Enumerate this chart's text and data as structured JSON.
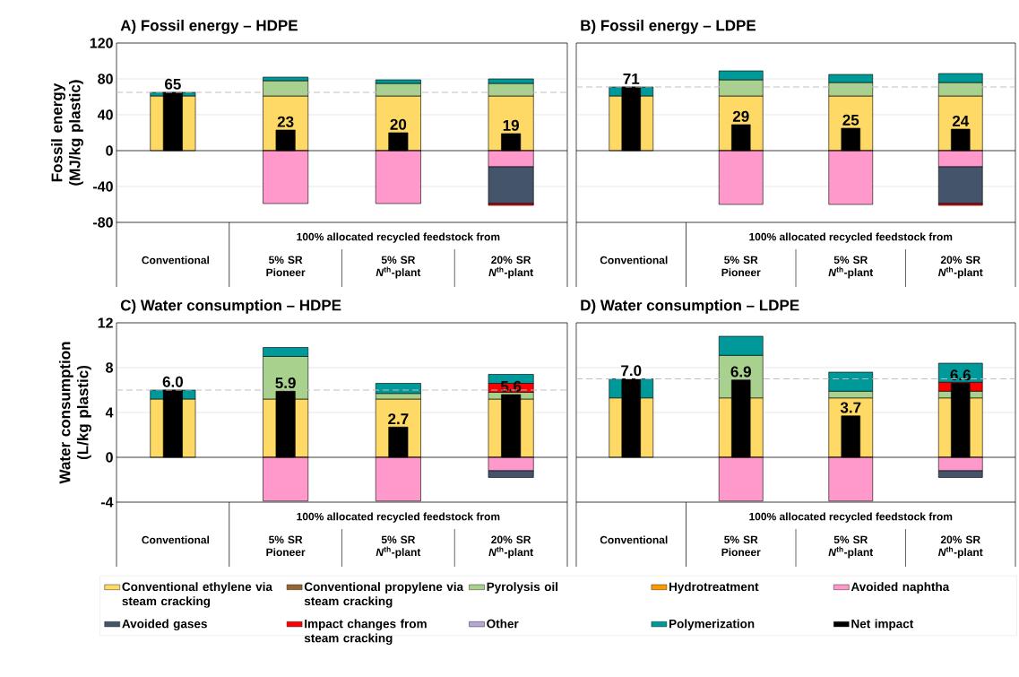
{
  "chart_data": [
    {
      "type": "bar",
      "title": "A) Fossil energy – HDPE",
      "ylabel": "Fossil energy (MJ/kg plastic)",
      "categories": [
        "Conventional",
        "5% SR Pioneer",
        "5% SR *N*$^{th}$-plant",
        "20% SR *N*$^{th}$-plant"
      ],
      "ylim": [
        -80,
        120
      ],
      "yticks": [
        -80,
        -40,
        0,
        40,
        80,
        120
      ],
      "grid": "y",
      "annotations": [
        "100% allocated recycled feedstock from"
      ],
      "ref_lines": [
        {
          "axis": "y",
          "value": 65,
          "color": "#bfbfbf",
          "line_style": "dashed"
        }
      ],
      "series": [
        {
          "color": "#ffd966",
          "base": [
            0,
            0,
            0,
            0
          ],
          "values": [
            61,
            61,
            61,
            61
          ]
        },
        {
          "color": "#996633",
          "values": [
            null,
            null,
            null,
            null
          ]
        },
        {
          "color": "#a9d18e",
          "base": [
            null,
            61,
            61,
            61
          ],
          "values": [
            null,
            17,
            14,
            14
          ]
        },
        {
          "color": "#ff9900",
          "values": [
            null,
            null,
            null,
            null
          ]
        },
        {
          "color": "#ff99cc",
          "base": [
            null,
            0,
            0,
            0
          ],
          "values": [
            null,
            -59,
            -59,
            -18
          ]
        },
        {
          "color": "#44546a",
          "base": [
            null,
            null,
            null,
            -18
          ],
          "values": [
            null,
            null,
            null,
            -41
          ]
        },
        {
          "color": "#ff0000",
          "base": [
            null,
            null,
            null,
            -59
          ],
          "values": [
            null,
            null,
            null,
            -2
          ]
        },
        {
          "color": "#b4a7d6",
          "values": [
            null,
            null,
            null,
            null
          ]
        },
        {
          "color": "#009999",
          "base": [
            61,
            78,
            75,
            75
          ],
          "values": [
            4,
            4,
            4,
            5
          ]
        },
        {
          "color": "#000000",
          "base": [
            0,
            0,
            0,
            0
          ],
          "values": [
            65,
            23,
            20,
            19
          ],
          "value_labels": [
            "65",
            "23",
            "20",
            "19"
          ]
        }
      ]
    },
    {
      "type": "bar",
      "title": "B) Fossil energy – LDPE",
      "tick_labels": "x",
      "categories": [
        "Conventional",
        "5% SR Pioneer",
        "5% SR *N*$^{th}$-plant",
        "20% SR *N*$^{th}$-plant"
      ],
      "ylim": [
        -80,
        120
      ],
      "yticks": [
        -80,
        -40,
        0,
        40,
        80,
        120
      ],
      "grid": "y",
      "annotations": [
        "100% allocated recycled feedstock from"
      ],
      "ref_lines": [
        {
          "axis": "y",
          "value": 71,
          "color": "#bfbfbf",
          "line_style": "dashed"
        }
      ],
      "series": [
        {
          "color": "#ffd966",
          "base": [
            0,
            0,
            0,
            0
          ],
          "values": [
            61,
            61,
            61,
            61
          ]
        },
        {
          "color": "#996633",
          "values": [
            null,
            null,
            null,
            null
          ]
        },
        {
          "color": "#a9d18e",
          "base": [
            null,
            61,
            61,
            61
          ],
          "values": [
            null,
            18,
            15,
            15
          ]
        },
        {
          "color": "#ff9900",
          "values": [
            null,
            null,
            null,
            null
          ]
        },
        {
          "color": "#ff99cc",
          "base": [
            null,
            0,
            0,
            0
          ],
          "values": [
            null,
            -60,
            -60,
            -18
          ]
        },
        {
          "color": "#44546a",
          "base": [
            null,
            null,
            null,
            -18
          ],
          "values": [
            null,
            null,
            null,
            -41
          ]
        },
        {
          "color": "#ff0000",
          "base": [
            null,
            null,
            null,
            -59
          ],
          "values": [
            null,
            null,
            null,
            -2
          ]
        },
        {
          "color": "#b4a7d6",
          "values": [
            null,
            null,
            null,
            null
          ]
        },
        {
          "color": "#009999",
          "base": [
            61,
            79,
            76,
            76
          ],
          "values": [
            10,
            10,
            9,
            10
          ]
        },
        {
          "color": "#000000",
          "base": [
            0,
            0,
            0,
            0
          ],
          "values": [
            71,
            29,
            25,
            24
          ],
          "value_labels": [
            "71",
            "29",
            "25",
            "24"
          ]
        }
      ]
    },
    {
      "type": "bar",
      "title": "C) Water consumption – HDPE",
      "ylabel": "Water consumption (L/kg plastic)",
      "categories": [
        "Conventional",
        "5% SR Pioneer",
        "5% SR *N*$^{th}$-plant",
        "20% SR *N*$^{th}$-plant"
      ],
      "ylim": [
        -4,
        12
      ],
      "yticks": [
        -4,
        0,
        4,
        8,
        12
      ],
      "grid": "y",
      "annotations": [
        "100% allocated recycled feedstock from"
      ],
      "ref_lines": [
        {
          "axis": "y",
          "value": 6.0,
          "color": "#bfbfbf",
          "line_style": "dashed"
        }
      ],
      "series": [
        {
          "color": "#ffd966",
          "base": [
            0,
            0,
            0,
            0
          ],
          "values": [
            5.2,
            5.2,
            5.2,
            5.2
          ]
        },
        {
          "color": "#996633",
          "values": [
            null,
            null,
            null,
            null
          ]
        },
        {
          "color": "#a9d18e",
          "base": [
            null,
            5.2,
            5.2,
            5.2
          ],
          "values": [
            null,
            3.8,
            0.5,
            0.6
          ]
        },
        {
          "color": "#ff9900",
          "values": [
            null,
            null,
            null,
            null
          ]
        },
        {
          "color": "#ff99cc",
          "base": [
            null,
            0,
            0,
            0
          ],
          "values": [
            null,
            -3.9,
            -3.9,
            -1.2
          ]
        },
        {
          "color": "#44546a",
          "base": [
            null,
            null,
            null,
            -1.2
          ],
          "values": [
            null,
            null,
            null,
            -0.6
          ]
        },
        {
          "color": "#ff0000",
          "base": [
            null,
            null,
            null,
            5.8
          ],
          "values": [
            null,
            null,
            null,
            0.8
          ]
        },
        {
          "color": "#b4a7d6",
          "values": [
            null,
            null,
            null,
            null
          ]
        },
        {
          "color": "#009999",
          "base": [
            5.2,
            9.0,
            5.7,
            6.6
          ],
          "values": [
            0.8,
            0.8,
            0.9,
            0.8
          ]
        },
        {
          "color": "#000000",
          "base": [
            0,
            0,
            0,
            0
          ],
          "values": [
            6.0,
            5.9,
            2.7,
            5.6
          ],
          "value_labels": [
            "6.0",
            "5.9",
            "2.7",
            "5.6"
          ]
        }
      ]
    },
    {
      "type": "bar",
      "title": "D) Water consumption – LDPE",
      "tick_labels": "x",
      "legend": "bottom",
      "categories": [
        "Conventional",
        "5% SR Pioneer",
        "5% SR *N*$^{th}$-plant",
        "20% SR *N*$^{th}$-plant"
      ],
      "ylim": [
        -4,
        12
      ],
      "yticks": [
        -4,
        0,
        4,
        8,
        12
      ],
      "grid": "y",
      "annotations": [
        "100% allocated recycled feedstock from"
      ],
      "ref_lines": [
        {
          "axis": "y",
          "value": 7.0,
          "color": "#bfbfbf",
          "line_style": "dashed"
        }
      ],
      "series": [
        {
          "name": "Conventional ethylene via steam cracking",
          "color": "#ffd966",
          "base": [
            0,
            0,
            0,
            0
          ],
          "values": [
            5.3,
            5.3,
            5.3,
            5.3
          ]
        },
        {
          "name": "Conventional propylene via steam cracking",
          "color": "#996633",
          "values": [
            null,
            null,
            null,
            null
          ]
        },
        {
          "name": "Pyrolysis oil",
          "color": "#a9d18e",
          "base": [
            null,
            5.3,
            5.3,
            5.3
          ],
          "values": [
            null,
            3.8,
            0.6,
            0.6
          ]
        },
        {
          "name": "Hydrotreatment",
          "color": "#ff9900",
          "values": [
            null,
            null,
            null,
            null
          ]
        },
        {
          "name": "Avoided naphtha",
          "color": "#ff99cc",
          "base": [
            null,
            0,
            0,
            0
          ],
          "values": [
            null,
            -3.9,
            -3.9,
            -1.2
          ]
        },
        {
          "name": "Avoided gases",
          "color": "#44546a",
          "base": [
            null,
            null,
            null,
            -1.2
          ],
          "values": [
            null,
            null,
            null,
            -0.6
          ]
        },
        {
          "name": "Impact changes from steam cracking",
          "color": "#ff0000",
          "base": [
            null,
            null,
            null,
            5.9
          ],
          "values": [
            null,
            null,
            null,
            0.8
          ]
        },
        {
          "name": "Other",
          "color": "#b4a7d6",
          "values": [
            null,
            null,
            null,
            null
          ]
        },
        {
          "name": "Polymerization",
          "color": "#009999",
          "base": [
            5.3,
            9.1,
            5.9,
            6.7
          ],
          "values": [
            1.7,
            1.7,
            1.7,
            1.7
          ]
        },
        {
          "name": "Net impact",
          "color": "#000000",
          "base": [
            0,
            0,
            0,
            0
          ],
          "values": [
            7.0,
            6.9,
            3.7,
            6.6
          ],
          "value_labels": [
            "7.0",
            "6.9",
            "3.7",
            "6.6"
          ]
        }
      ]
    }
  ]
}
